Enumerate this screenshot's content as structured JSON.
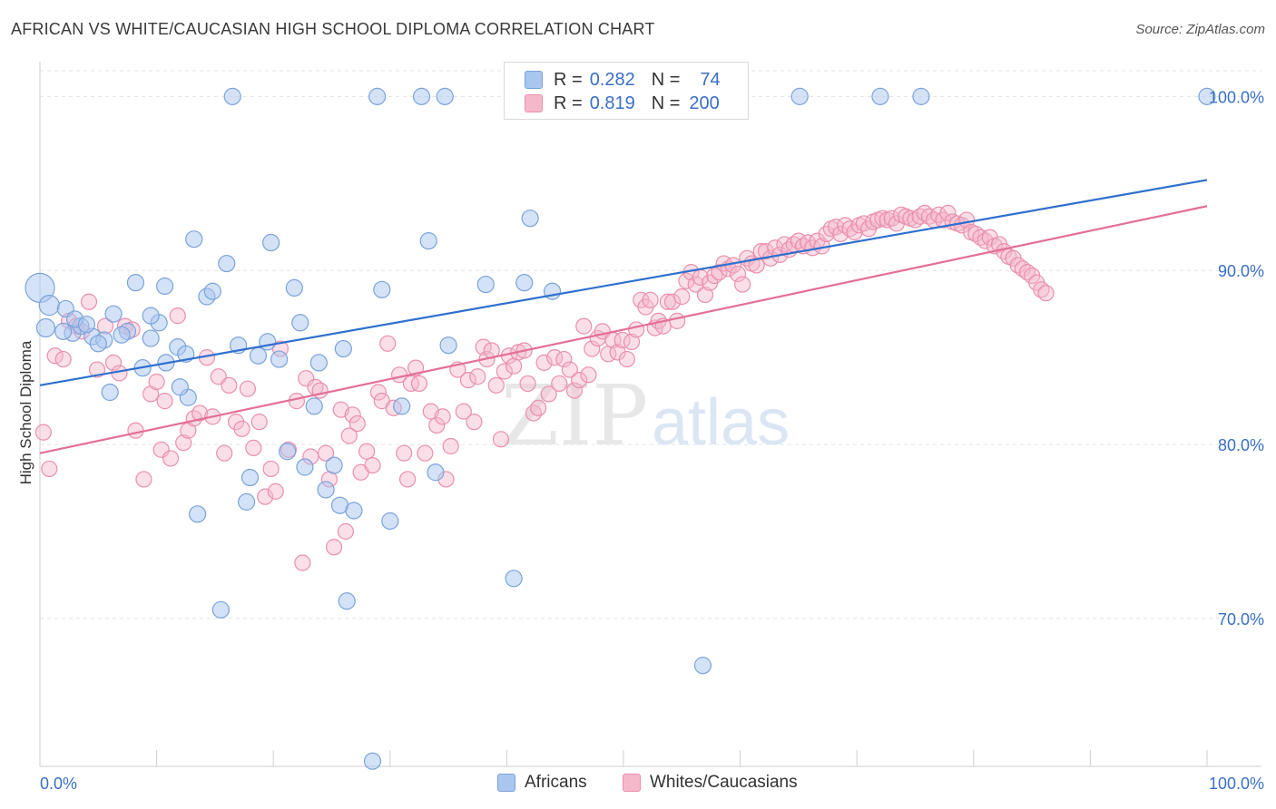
{
  "header": {
    "title": "AFRICAN VS WHITE/CAUCASIAN HIGH SCHOOL DIPLOMA CORRELATION CHART",
    "source": "Source: ZipAtlas.com"
  },
  "watermark": {
    "part1": "ZIP",
    "part2": "atlas"
  },
  "legend": {
    "rows": [
      {
        "r_label": "R = ",
        "r_value": "0.282",
        "n_label": "N = ",
        "n_value": "74"
      },
      {
        "r_label": "R = ",
        "r_value": "0.819",
        "n_label": "N = ",
        "n_value": "200"
      }
    ]
  },
  "bottom_legend": [
    "Africans",
    "Whites/Caucasians"
  ],
  "colors": {
    "blue_fill": "#a9c6ef",
    "blue_stroke": "#7aa3da",
    "blue_line": "#2f6fce",
    "pink_fill": "#f5b8cb",
    "pink_stroke": "#ea8fad",
    "pink_line": "#e46f97",
    "tick_label": "#3a6fc4",
    "grid": "#e3e3e3"
  },
  "chart_data": {
    "type": "scatter",
    "title": "AFRICAN VS WHITE/CAUCASIAN HIGH SCHOOL DIPLOMA CORRELATION CHART",
    "xlabel": "",
    "ylabel": "High School Diploma",
    "xlim": [
      0,
      100
    ],
    "ylim": [
      61.5,
      102
    ],
    "x_tick_labels": [
      {
        "value": 0,
        "label": "0.0%"
      },
      {
        "value": 100,
        "label": "100.0%"
      }
    ],
    "y_tick_labels": [
      {
        "value": 100,
        "label": "100.0%"
      },
      {
        "value": 90,
        "label": "90.0%"
      },
      {
        "value": 80,
        "label": "80.0%"
      },
      {
        "value": 70,
        "label": "70.0%"
      }
    ],
    "grid": "horizontal dashed",
    "legend_position": "top-center",
    "series": [
      {
        "name": "Africans",
        "color": "#a9c6ef",
        "trend": {
          "x": [
            0,
            100
          ],
          "y": [
            83.4,
            95.2
          ]
        },
        "points": [
          [
            0,
            89
          ],
          [
            0.8,
            88
          ],
          [
            0.5,
            86.7
          ],
          [
            2.2,
            87.8
          ],
          [
            2.8,
            86.4
          ],
          [
            3.5,
            86.8
          ],
          [
            4.5,
            86.2
          ],
          [
            5.5,
            86
          ],
          [
            6.3,
            87.5
          ],
          [
            7.5,
            86.5
          ],
          [
            8.2,
            89.3
          ],
          [
            8.8,
            84.4
          ],
          [
            9.5,
            86.1
          ],
          [
            10.2,
            87
          ],
          [
            10.7,
            89.1
          ],
          [
            11.8,
            85.6
          ],
          [
            12.7,
            82.7
          ],
          [
            13.2,
            91.8
          ],
          [
            14.3,
            88.5
          ],
          [
            14.8,
            88.8
          ],
          [
            16,
            90.4
          ],
          [
            16.5,
            100
          ],
          [
            17,
            85.7
          ],
          [
            17.7,
            76.7
          ],
          [
            18,
            78.1
          ],
          [
            18.7,
            85.1
          ],
          [
            19.5,
            85.9
          ],
          [
            19.8,
            91.6
          ],
          [
            20.5,
            84.9
          ],
          [
            21.2,
            79.6
          ],
          [
            21.8,
            89
          ],
          [
            22.3,
            87
          ],
          [
            22.7,
            78.7
          ],
          [
            23.5,
            82.2
          ],
          [
            23.9,
            84.7
          ],
          [
            24.5,
            77.4
          ],
          [
            25.2,
            78.8
          ],
          [
            25.7,
            76.5
          ],
          [
            26,
            85.5
          ],
          [
            26.3,
            71
          ],
          [
            26.9,
            76.2
          ],
          [
            28.5,
            61.8
          ],
          [
            28.9,
            100
          ],
          [
            29.3,
            88.9
          ],
          [
            30,
            75.6
          ],
          [
            31,
            82.2
          ],
          [
            32.7,
            100
          ],
          [
            33.3,
            91.7
          ],
          [
            33.9,
            78.4
          ],
          [
            34.7,
            100
          ],
          [
            35,
            85.7
          ],
          [
            38.2,
            89.2
          ],
          [
            40.6,
            72.3
          ],
          [
            41.5,
            89.3
          ],
          [
            42,
            93
          ],
          [
            43.9,
            88.8
          ],
          [
            53.1,
            100
          ],
          [
            56.8,
            67.3
          ],
          [
            65.1,
            100
          ],
          [
            72,
            100
          ],
          [
            75.5,
            100
          ],
          [
            100,
            100
          ],
          [
            7,
            86.3
          ],
          [
            12,
            83.3
          ],
          [
            13.5,
            76
          ],
          [
            15.5,
            70.5
          ],
          [
            2,
            86.5
          ],
          [
            6,
            83
          ],
          [
            3,
            87.2
          ],
          [
            9.5,
            87.4
          ],
          [
            5,
            85.8
          ],
          [
            10.8,
            84.7
          ],
          [
            12.5,
            85.2
          ],
          [
            4,
            86.9
          ]
        ],
        "point_radius": [
          16,
          11,
          10,
          9,
          9,
          9,
          9,
          9,
          9,
          9,
          9,
          9,
          9,
          9,
          9,
          9,
          9,
          9,
          9,
          9,
          9,
          9,
          9,
          9,
          9,
          9,
          9,
          9,
          9,
          9,
          9,
          9,
          9,
          9,
          9,
          9,
          9,
          9,
          9,
          9,
          9,
          9,
          9,
          9,
          9,
          9,
          9,
          9,
          9,
          9,
          9,
          9,
          9,
          9,
          9,
          9,
          9,
          9,
          9,
          9,
          9,
          9,
          9,
          9,
          9,
          9,
          9,
          9,
          9,
          9,
          9,
          9,
          9,
          9
        ]
      },
      {
        "name": "Whites/Caucasians",
        "color": "#f5b8cb",
        "trend": {
          "x": [
            0,
            100
          ],
          "y": [
            79.5,
            93.7
          ]
        },
        "points": [
          [
            0.3,
            80.7
          ],
          [
            0.8,
            78.6
          ],
          [
            1.3,
            85.1
          ],
          [
            2,
            84.9
          ],
          [
            2.5,
            87.1
          ],
          [
            3.1,
            86.8
          ],
          [
            3.6,
            86.5
          ],
          [
            4.2,
            88.2
          ],
          [
            4.9,
            84.3
          ],
          [
            5.6,
            86.8
          ],
          [
            6.3,
            84.7
          ],
          [
            6.8,
            84.1
          ],
          [
            7.3,
            86.8
          ],
          [
            7.9,
            86.6
          ],
          [
            8.2,
            80.8
          ],
          [
            8.9,
            78
          ],
          [
            9.5,
            82.9
          ],
          [
            10,
            83.6
          ],
          [
            10.4,
            79.7
          ],
          [
            10.7,
            82.5
          ],
          [
            11.2,
            79.2
          ],
          [
            11.8,
            87.4
          ],
          [
            12.3,
            80.1
          ],
          [
            12.7,
            80.8
          ],
          [
            13.2,
            81.5
          ],
          [
            13.7,
            81.8
          ],
          [
            14.3,
            85
          ],
          [
            14.8,
            81.6
          ],
          [
            15.3,
            83.9
          ],
          [
            15.8,
            79.5
          ],
          [
            16.2,
            83.4
          ],
          [
            16.8,
            81.3
          ],
          [
            17.3,
            80.9
          ],
          [
            17.8,
            83.2
          ],
          [
            18.3,
            79.8
          ],
          [
            18.8,
            81.3
          ],
          [
            19.3,
            77
          ],
          [
            19.8,
            78.6
          ],
          [
            20.2,
            77.3
          ],
          [
            20.6,
            85.5
          ],
          [
            21.3,
            79.7
          ],
          [
            22,
            82.5
          ],
          [
            22.5,
            73.2
          ],
          [
            22.8,
            83.8
          ],
          [
            23.2,
            79.3
          ],
          [
            23.6,
            83.3
          ],
          [
            24,
            83.1
          ],
          [
            24.5,
            79.5
          ],
          [
            24.8,
            78
          ],
          [
            25.2,
            74.1
          ],
          [
            25.8,
            82
          ],
          [
            26.2,
            75
          ],
          [
            26.5,
            80.5
          ],
          [
            26.8,
            81.7
          ],
          [
            27.2,
            81.2
          ],
          [
            27.5,
            78.4
          ],
          [
            28,
            79.6
          ],
          [
            28.5,
            78.8
          ],
          [
            29,
            83
          ],
          [
            29.3,
            82.5
          ],
          [
            29.8,
            85.8
          ],
          [
            30.3,
            82.1
          ],
          [
            30.8,
            84
          ],
          [
            31.2,
            79.5
          ],
          [
            31.5,
            78
          ],
          [
            31.8,
            83.5
          ],
          [
            32.2,
            84.4
          ],
          [
            32.5,
            83.5
          ],
          [
            33,
            79.5
          ],
          [
            33.5,
            81.9
          ],
          [
            34,
            81.1
          ],
          [
            34.5,
            81.6
          ],
          [
            34.8,
            78
          ],
          [
            35.2,
            79.9
          ],
          [
            35.8,
            84.3
          ],
          [
            36.3,
            81.9
          ],
          [
            36.7,
            83.7
          ],
          [
            37.2,
            81.3
          ],
          [
            37.5,
            83.9
          ],
          [
            38,
            85.6
          ],
          [
            38.3,
            84.9
          ],
          [
            38.7,
            85.4
          ],
          [
            39.1,
            83.4
          ],
          [
            39.5,
            80.3
          ],
          [
            39.8,
            84.2
          ],
          [
            40.2,
            85.1
          ],
          [
            40.6,
            84.5
          ],
          [
            41,
            85.3
          ],
          [
            41.5,
            85.4
          ],
          [
            41.8,
            83.5
          ],
          [
            42.3,
            81.8
          ],
          [
            42.7,
            82.1
          ],
          [
            43.2,
            84.7
          ],
          [
            43.6,
            82.9
          ],
          [
            44.1,
            85
          ],
          [
            44.5,
            83.5
          ],
          [
            44.9,
            84.9
          ],
          [
            45.4,
            84.3
          ],
          [
            45.8,
            83.1
          ],
          [
            46.2,
            83.7
          ],
          [
            46.6,
            86.8
          ],
          [
            47,
            84
          ],
          [
            47.3,
            85.5
          ],
          [
            47.8,
            86.1
          ],
          [
            48.2,
            86.5
          ],
          [
            48.7,
            85.2
          ],
          [
            49.1,
            86
          ],
          [
            49.5,
            85.3
          ],
          [
            49.9,
            86
          ],
          [
            50.3,
            84.9
          ],
          [
            50.7,
            85.9
          ],
          [
            51.1,
            86.6
          ],
          [
            51.5,
            88.3
          ],
          [
            51.9,
            87.9
          ],
          [
            52.3,
            88.3
          ],
          [
            52.7,
            86.7
          ],
          [
            53,
            87.1
          ],
          [
            53.4,
            86.8
          ],
          [
            53.8,
            88.2
          ],
          [
            54.2,
            88.2
          ],
          [
            54.6,
            87.1
          ],
          [
            55,
            88.5
          ],
          [
            55.4,
            89.4
          ],
          [
            55.8,
            89.9
          ],
          [
            56.2,
            89.2
          ],
          [
            56.6,
            89.6
          ],
          [
            57,
            88.6
          ],
          [
            57.4,
            89.3
          ],
          [
            57.8,
            89.7
          ],
          [
            58.2,
            89.9
          ],
          [
            58.6,
            90.4
          ],
          [
            59,
            90.1
          ],
          [
            59.4,
            90.3
          ],
          [
            59.8,
            89.8
          ],
          [
            60.2,
            89.2
          ],
          [
            60.6,
            90.7
          ],
          [
            61,
            90.4
          ],
          [
            61.4,
            90.3
          ],
          [
            61.8,
            91.1
          ],
          [
            62.2,
            91.1
          ],
          [
            62.6,
            90.7
          ],
          [
            63,
            91.3
          ],
          [
            63.4,
            90.9
          ],
          [
            63.8,
            91.5
          ],
          [
            64.2,
            91.2
          ],
          [
            64.6,
            91.5
          ],
          [
            65,
            91.7
          ],
          [
            65.4,
            91.4
          ],
          [
            65.8,
            91.6
          ],
          [
            66.2,
            91.3
          ],
          [
            66.6,
            91.7
          ],
          [
            67,
            91.4
          ],
          [
            67.4,
            92.1
          ],
          [
            67.8,
            92.4
          ],
          [
            68.2,
            92.5
          ],
          [
            68.6,
            92.1
          ],
          [
            69,
            92.6
          ],
          [
            69.4,
            92.4
          ],
          [
            69.8,
            92.2
          ],
          [
            70.2,
            92.6
          ],
          [
            70.6,
            92.7
          ],
          [
            71,
            92.4
          ],
          [
            71.4,
            92.8
          ],
          [
            71.8,
            92.9
          ],
          [
            72.2,
            93
          ],
          [
            72.6,
            92.9
          ],
          [
            73,
            93
          ],
          [
            73.4,
            92.7
          ],
          [
            73.8,
            93.2
          ],
          [
            74.2,
            93.1
          ],
          [
            74.6,
            93
          ],
          [
            75,
            92.9
          ],
          [
            75.4,
            93.1
          ],
          [
            75.8,
            93.3
          ],
          [
            76.2,
            93.1
          ],
          [
            76.6,
            92.9
          ],
          [
            77,
            93.2
          ],
          [
            77.4,
            92.9
          ],
          [
            77.8,
            93.3
          ],
          [
            78.2,
            92.8
          ],
          [
            78.6,
            92.7
          ],
          [
            79,
            92.6
          ],
          [
            79.4,
            92.9
          ],
          [
            79.8,
            92.2
          ],
          [
            80.2,
            92.1
          ],
          [
            80.6,
            91.9
          ],
          [
            81,
            91.7
          ],
          [
            81.4,
            91.9
          ],
          [
            81.8,
            91.4
          ],
          [
            82.2,
            91.5
          ],
          [
            82.6,
            91.1
          ],
          [
            83,
            90.8
          ],
          [
            83.4,
            90.7
          ],
          [
            83.8,
            90.3
          ],
          [
            84.2,
            90.1
          ],
          [
            84.6,
            89.9
          ],
          [
            85,
            89.7
          ],
          [
            85.4,
            89.3
          ],
          [
            85.8,
            88.9
          ],
          [
            86.2,
            88.7
          ]
        ]
      }
    ]
  }
}
